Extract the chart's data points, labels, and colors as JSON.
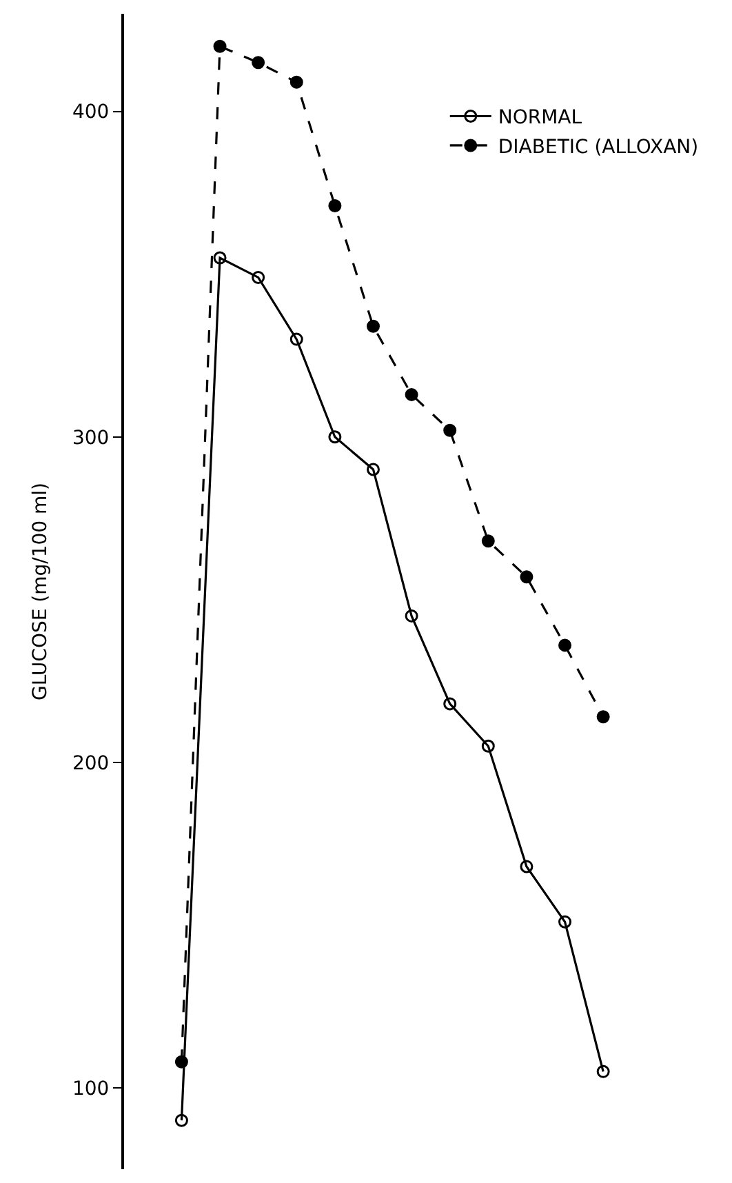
{
  "chart_data": {
    "type": "line",
    "ylabel": "GLUCOSE (mg/100 ml)",
    "categories": [
      null,
      null,
      null,
      null,
      null,
      null,
      null,
      null,
      null,
      null,
      null,
      null
    ],
    "series": [
      {
        "name": "NORMAL",
        "color": "#000000",
        "line_style": "solid",
        "values": [
          90,
          355,
          349,
          330,
          300,
          290,
          245,
          218,
          205,
          168,
          151,
          105
        ]
      },
      {
        "name": "DIABETIC (ALLOXAN)",
        "color": "#000000",
        "line_style": "dashed",
        "values": [
          108,
          420,
          415,
          409,
          371,
          334,
          313,
          302,
          268,
          257,
          236,
          214
        ]
      }
    ],
    "ylim": [
      75,
      430
    ],
    "yticks": [
      100,
      200,
      300,
      400
    ],
    "legend": "top right",
    "marker": "circle"
  }
}
